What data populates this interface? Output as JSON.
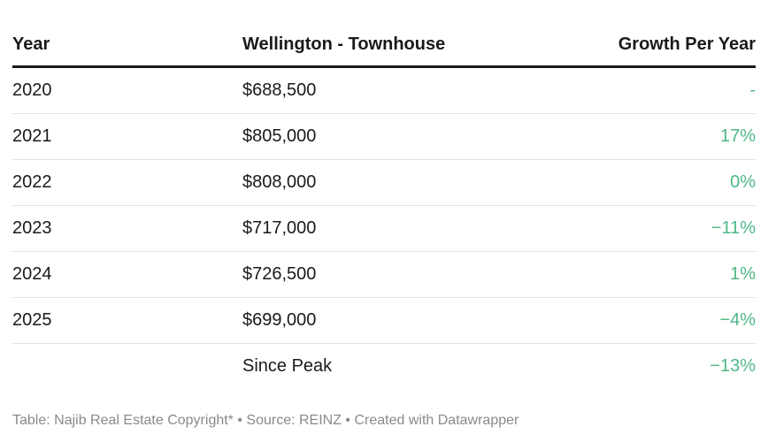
{
  "chart_data": {
    "type": "table",
    "columns": [
      "Year",
      "Wellington - Townhouse",
      "Growth Per Year"
    ],
    "rows": [
      {
        "year": "2020",
        "price": "$688,500",
        "growth": "-"
      },
      {
        "year": "2021",
        "price": "$805,000",
        "growth": "17%"
      },
      {
        "year": "2022",
        "price": "$808,000",
        "growth": "0%"
      },
      {
        "year": "2023",
        "price": "$717,000",
        "growth": "−11%"
      },
      {
        "year": "2024",
        "price": "$726,500",
        "growth": "1%"
      },
      {
        "year": "2025",
        "price": "$699,000",
        "growth": "−4%"
      },
      {
        "year": "",
        "price": "Since Peak",
        "growth": "−13%"
      }
    ],
    "footer": "Table: Najib Real Estate Copyright* • Source: REINZ • Created with Datawrapper",
    "growth_color": "#4fb886"
  }
}
